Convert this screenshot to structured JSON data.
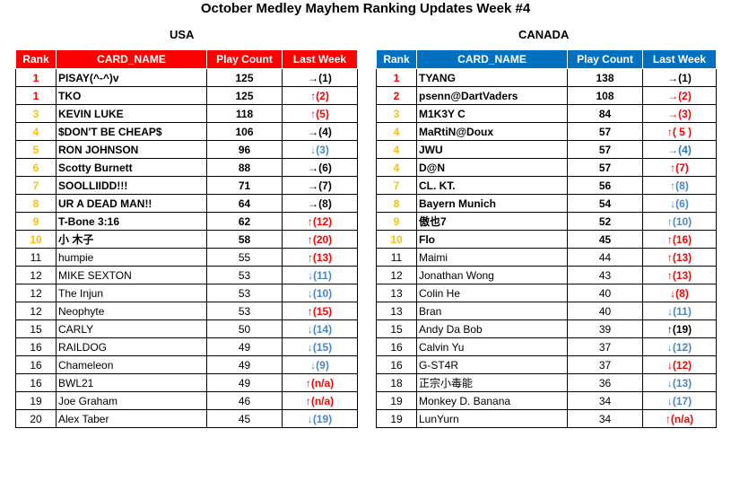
{
  "title": "October Medley Mayhem Ranking Updates Week #4",
  "usa": {
    "label": "USA",
    "headers": [
      "Rank",
      "CARD_NAME",
      "Play Count",
      "Last Week"
    ],
    "rows": [
      {
        "rank": "1",
        "name": "PISAY(^-^)v",
        "count": "125",
        "last": "→(1)",
        "trend": "same"
      },
      {
        "rank": "1",
        "name": "TKO",
        "count": "125",
        "last": "↑(2)",
        "trend": "up"
      },
      {
        "rank": "3",
        "name": "KEVIN LUKE",
        "count": "118",
        "last": "↑(5)",
        "trend": "up"
      },
      {
        "rank": "4",
        "name": "$DON'T BE CHEAP$",
        "count": "106",
        "last": "→(4)",
        "trend": "same"
      },
      {
        "rank": "5",
        "name": "RON JOHNSON",
        "count": "96",
        "last": "↓(3)",
        "trend": "down"
      },
      {
        "rank": "6",
        "name": "Scotty Burnett",
        "count": "88",
        "last": "→(6)",
        "trend": "same"
      },
      {
        "rank": "7",
        "name": "SOOLLIIDD!!!",
        "count": "71",
        "last": "→(7)",
        "trend": "same"
      },
      {
        "rank": "8",
        "name": "UR A DEAD MAN!!",
        "count": "64",
        "last": "→(8)",
        "trend": "same"
      },
      {
        "rank": "9",
        "name": "T-Bone 3:16",
        "count": "62",
        "last": "↑(12)",
        "trend": "up"
      },
      {
        "rank": "10",
        "name": "小 木子",
        "count": "58",
        "last": "↑(20)",
        "trend": "up"
      },
      {
        "rank": "11",
        "name": " humpie",
        "count": "55",
        "last": "↑(13)",
        "trend": "up"
      },
      {
        "rank": "12",
        "name": "MIKE SEXTON",
        "count": "53",
        "last": "↓(11)",
        "trend": "down"
      },
      {
        "rank": "12",
        "name": "The Injun",
        "count": "53",
        "last": "↓(10)",
        "trend": "down"
      },
      {
        "rank": "12",
        "name": "Neophyte",
        "count": "53",
        "last": "↑(15)",
        "trend": "up"
      },
      {
        "rank": "15",
        "name": "CARLY",
        "count": "50",
        "last": "↓(14)",
        "trend": "down"
      },
      {
        "rank": "16",
        "name": "RAILDOG",
        "count": "49",
        "last": "↓(15)",
        "trend": "down"
      },
      {
        "rank": "16",
        "name": "Chameleon",
        "count": "49",
        "last": "↓(9)",
        "trend": "down"
      },
      {
        "rank": "16",
        "name": "BWL21",
        "count": "49",
        "last": "↑(n/a)",
        "trend": "up"
      },
      {
        "rank": "19",
        "name": "Joe Graham",
        "count": "46",
        "last": "↑(n/a)",
        "trend": "up"
      },
      {
        "rank": "20",
        "name": "Alex Taber",
        "count": "45",
        "last": "↓(19)",
        "trend": "down"
      }
    ]
  },
  "canada": {
    "label": "CANADA",
    "headers": [
      "Rank",
      "CARD_NAME",
      "Play Count",
      "Last Week"
    ],
    "rows": [
      {
        "rank": "1",
        "name": "TYANG",
        "count": "138",
        "last": "→(1)",
        "trend": "same"
      },
      {
        "rank": "2",
        "name": "psenn@DartVaders",
        "count": "108",
        "last": "→(2)",
        "trend": "same-red"
      },
      {
        "rank": "3",
        "name": "M1K3Y C",
        "count": "84",
        "last": "→(3)",
        "trend": "same-red"
      },
      {
        "rank": "4",
        "name": "MaRtiN@Doux",
        "count": "57",
        "last": "↑( 5 )",
        "trend": "up"
      },
      {
        "rank": "4",
        "name": "JWU",
        "count": "57",
        "last": "→(4)",
        "trend": "same-blue"
      },
      {
        "rank": "4",
        "name": "D@N",
        "count": "57",
        "last": "↑(7)",
        "trend": "up"
      },
      {
        "rank": "7",
        "name": "CL. KT.",
        "count": "56",
        "last": "↑(8)",
        "trend": "up-blue"
      },
      {
        "rank": "8",
        "name": "Bayern Munich",
        "count": "54",
        "last": "↓(6)",
        "trend": "down"
      },
      {
        "rank": "9",
        "name": "傲也7",
        "count": "52",
        "last": "↑(10)",
        "trend": "up-blue"
      },
      {
        "rank": "10",
        "name": "Flo",
        "count": "45",
        "last": "↑(16)",
        "trend": "up"
      },
      {
        "rank": "11",
        "name": "Maimi",
        "count": "44",
        "last": "↑(13)",
        "trend": "up"
      },
      {
        "rank": "12",
        "name": "Jonathan Wong",
        "count": "43",
        "last": "↑(13)",
        "trend": "up"
      },
      {
        "rank": "13",
        "name": "Colin He",
        "count": "40",
        "last": "↓(8)",
        "trend": "down-red"
      },
      {
        "rank": "13",
        "name": "Bran",
        "count": "40",
        "last": "↓(11)",
        "trend": "down"
      },
      {
        "rank": "15",
        "name": "Andy Da Bob",
        "count": "39",
        "last": "↑(19)",
        "trend": "up-dark"
      },
      {
        "rank": "16",
        "name": "Calvin Yu",
        "count": "37",
        "last": "↓(12)",
        "trend": "down"
      },
      {
        "rank": "16",
        "name": "G-ST4R",
        "count": "37",
        "last": "↓(12)",
        "trend": "down-red"
      },
      {
        "rank": "18",
        "name": "正宗小毒能",
        "count": "36",
        "last": "↓(13)",
        "trend": "down"
      },
      {
        "rank": "19",
        "name": "Monkey D. Banana",
        "count": "34",
        "last": "↓(17)",
        "trend": "down"
      },
      {
        "rank": "19",
        "name": "LunYurn",
        "count": "34",
        "last": "↑(n/a)",
        "trend": "up"
      }
    ]
  },
  "colors": {
    "usa_header": "#ff0000",
    "canada_header": "#0070c0",
    "rank_red": "#ff0000",
    "rank_gold": "#ffc000",
    "up": "#ff0000",
    "down": "#4a86c8"
  }
}
